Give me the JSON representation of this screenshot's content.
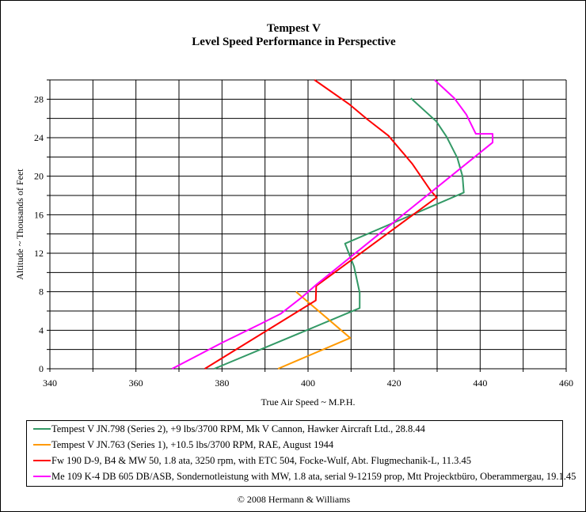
{
  "chart_data": {
    "type": "line",
    "title": "Tempest V",
    "subtitle": "Level Speed Performance in Perspective",
    "xlabel": "True Air Speed ~ M.P.H.",
    "ylabel": "Altitude ~ Thousands of Feet",
    "xlim": [
      340,
      460
    ],
    "ylim": [
      0,
      30
    ],
    "xticks": [
      340,
      360,
      380,
      400,
      420,
      440,
      460
    ],
    "yticks": [
      0,
      4,
      8,
      12,
      16,
      20,
      24,
      28
    ],
    "grid": true,
    "legend_placement": "bottom",
    "series": [
      {
        "name": "Tempest V JN.798 (Series 2), +9 lbs/3700 RPM, Mk V Cannon, Hawker Aircraft Ltd., 28.8.44",
        "color": "#339966",
        "points": [
          [
            378.2,
            0
          ],
          [
            412,
            6.3
          ],
          [
            412,
            7.9
          ],
          [
            410.7,
            10.6
          ],
          [
            408.6,
            13
          ],
          [
            436.2,
            18.3
          ],
          [
            435.9,
            20
          ],
          [
            434.7,
            21.9
          ],
          [
            432.2,
            24.1
          ],
          [
            429.8,
            25.7
          ],
          [
            423.9,
            28.1
          ]
        ]
      },
      {
        "name": "Tempest V JN.763 (Series 1), +10.5 lbs/3700 RPM, RAE, August 1944",
        "color": "#FF9900",
        "points": [
          [
            393,
            0
          ],
          [
            409.8,
            3.2
          ],
          [
            397.2,
            8.0
          ]
        ]
      },
      {
        "name": "Fw 190 D-9, B4 & MW 50, 1.8 ata, 3250 rpm, with ETC 504, Focke-Wulf, Abt. Flugmechanik-L, 11.3.45",
        "color": "#FF0000",
        "points": [
          [
            376,
            0
          ],
          [
            401.8,
            7.1
          ],
          [
            401.9,
            8.6
          ],
          [
            429.9,
            17.8
          ],
          [
            428.5,
            18.5
          ],
          [
            424.2,
            21.3
          ],
          [
            418.7,
            24.2
          ],
          [
            413.8,
            25.9
          ],
          [
            409.5,
            27.5
          ],
          [
            401.5,
            30
          ]
        ]
      },
      {
        "name": "Me 109 K-4 DB 605 DB/ASB, Sondernotleistung with MW, 1.8 ata, serial 9-12159 prop, Mtt Projecktbüro, Oberammergau, 19.1.45",
        "color": "#FF00FF",
        "points": [
          [
            368.4,
            0
          ],
          [
            380,
            2.7
          ],
          [
            388.7,
            4.6
          ],
          [
            393.6,
            5.7
          ],
          [
            398.5,
            7.4
          ],
          [
            402.1,
            8.8
          ],
          [
            442.9,
            23.5
          ],
          [
            442.9,
            24.4
          ],
          [
            439,
            24.4
          ],
          [
            436.8,
            26.4
          ],
          [
            434,
            28.1
          ],
          [
            429.4,
            30
          ]
        ]
      }
    ]
  },
  "copyright": "© 2008 Hermann & Williams"
}
